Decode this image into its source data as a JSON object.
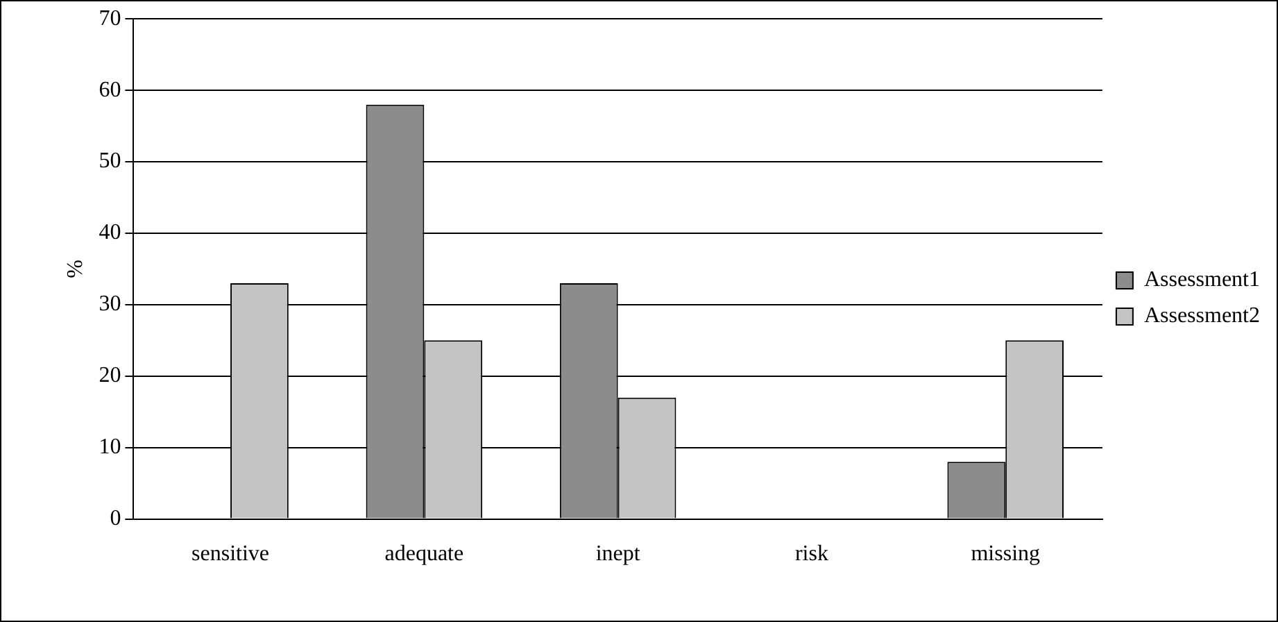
{
  "chart_data": {
    "type": "bar",
    "ylabel": "%",
    "categories": [
      "sensitive",
      "adequate",
      "inept",
      "risk",
      "missing"
    ],
    "series": [
      {
        "name": "Assessment1",
        "color": "#8c8c8c",
        "values": [
          0,
          58,
          33,
          0,
          8
        ]
      },
      {
        "name": "Assessment2",
        "color": "#c4c4c4",
        "values": [
          33,
          25,
          17,
          0,
          25
        ]
      }
    ],
    "ylim": [
      0,
      70
    ],
    "yticks": [
      0,
      10,
      20,
      30,
      40,
      50,
      60,
      70
    ],
    "grid": "y",
    "legend": "right"
  }
}
